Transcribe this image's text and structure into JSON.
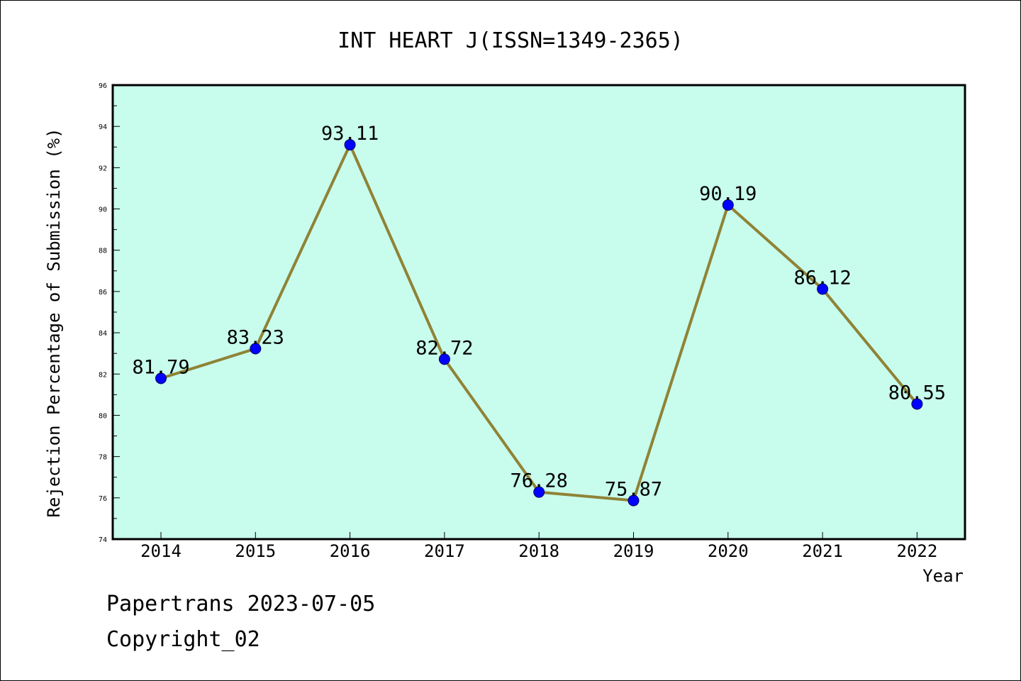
{
  "chart_data": {
    "type": "line",
    "title": "INT HEART J(ISSN=1349-2365)",
    "xlabel": "Year",
    "ylabel": "Rejection Percentage of Submission (%)",
    "categories": [
      "2014",
      "2015",
      "2016",
      "2017",
      "2018",
      "2019",
      "2020",
      "2021",
      "2022"
    ],
    "series": [
      {
        "values": [
          81.79,
          83.23,
          93.11,
          82.72,
          76.28,
          75.87,
          90.19,
          86.12,
          80.55
        ],
        "labels": [
          "81.79",
          "83.23",
          "93.11",
          "82.72",
          "76.28",
          "75.87",
          "90.19",
          "86.12",
          "80.55"
        ]
      }
    ],
    "ylim": [
      74,
      96
    ],
    "yticks": [
      "74",
      "76",
      "78",
      "80",
      "82",
      "84",
      "86",
      "88",
      "90",
      "92",
      "94",
      "96"
    ],
    "grid": false,
    "legend": "none",
    "colors": {
      "plot_background": "#c8fced",
      "line": "#8f8335",
      "marker": "#0000ff"
    }
  },
  "footer": {
    "line1": "Papertrans 2023-07-05",
    "line2": "Copyright_02"
  }
}
